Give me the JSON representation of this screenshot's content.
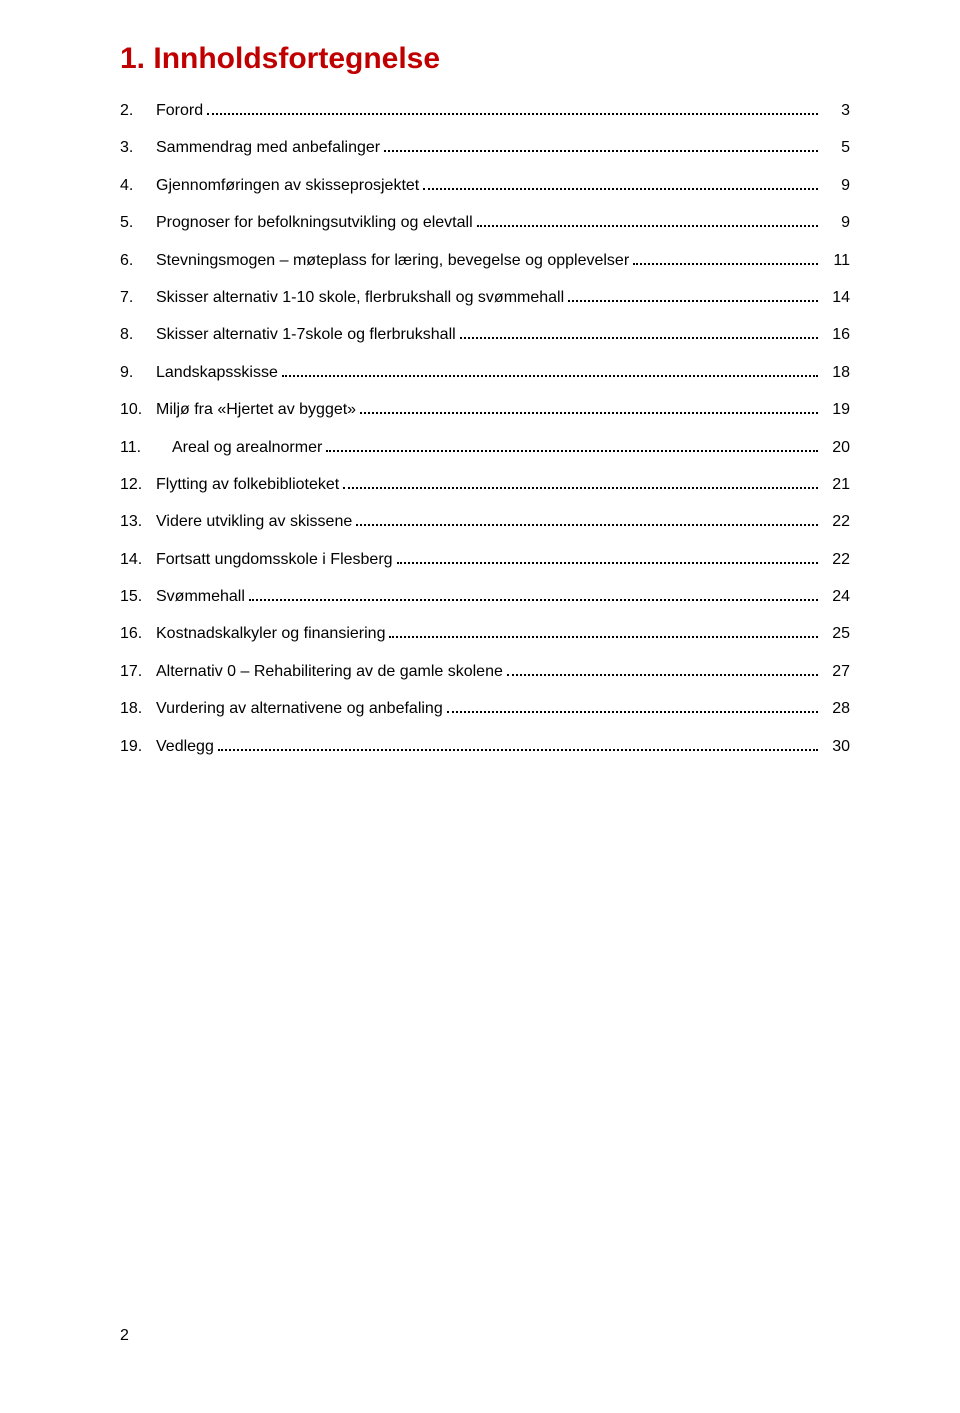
{
  "colors": {
    "title": "#c00000",
    "text": "#000000",
    "background": "#ffffff"
  },
  "typography": {
    "title_fontsize_pt": 22,
    "title_fontweight": "bold",
    "body_fontsize_pt": 12,
    "font_family": "Arial"
  },
  "title": "1. Innholdsfortegnelse",
  "toc": [
    {
      "num": "2.",
      "label": "Forord",
      "page": "3"
    },
    {
      "num": "3.",
      "label": "Sammendrag med anbefalinger",
      "page": "5"
    },
    {
      "num": "4.",
      "label": "Gjennomføringen av skisseprosjektet",
      "page": "9"
    },
    {
      "num": "5.",
      "label": "Prognoser for befolkningsutvikling og elevtall",
      "page": "9"
    },
    {
      "num": "6.",
      "label": "Stevningsmogen – møteplass for læring, bevegelse og opplevelser",
      "page": "11"
    },
    {
      "num": "7.",
      "label": "Skisser alternativ 1-10 skole, flerbrukshall og svømmehall",
      "page": "14"
    },
    {
      "num": "8.",
      "label": "Skisser alternativ 1-7skole og flerbrukshall",
      "page": "16"
    },
    {
      "num": "9.",
      "label": "Landskapsskisse",
      "page": "18"
    },
    {
      "num": "10.",
      "label": "Miljø fra «Hjertet av bygget»",
      "page": "19"
    },
    {
      "num": "11.",
      "label": "Areal og arealnormer",
      "page": "20",
      "indent": true
    },
    {
      "num": "12.",
      "label": "Flytting av folkebiblioteket",
      "page": "21"
    },
    {
      "num": "13.",
      "label": "Videre utvikling av skissene",
      "page": "22"
    },
    {
      "num": "14.",
      "label": "Fortsatt ungdomsskole i Flesberg",
      "page": "22"
    },
    {
      "num": "15.",
      "label": "Svømmehall",
      "page": "24"
    },
    {
      "num": "16.",
      "label": "Kostnadskalkyler og finansiering",
      "page": "25"
    },
    {
      "num": "17.",
      "label": "Alternativ 0 – Rehabilitering av de gamle skolene",
      "page": "27"
    },
    {
      "num": "18.",
      "label": "Vurdering av alternativene og anbefaling",
      "page": "28"
    },
    {
      "num": "19.",
      "label": "Vedlegg",
      "page": "30"
    }
  ],
  "page_number": "2"
}
